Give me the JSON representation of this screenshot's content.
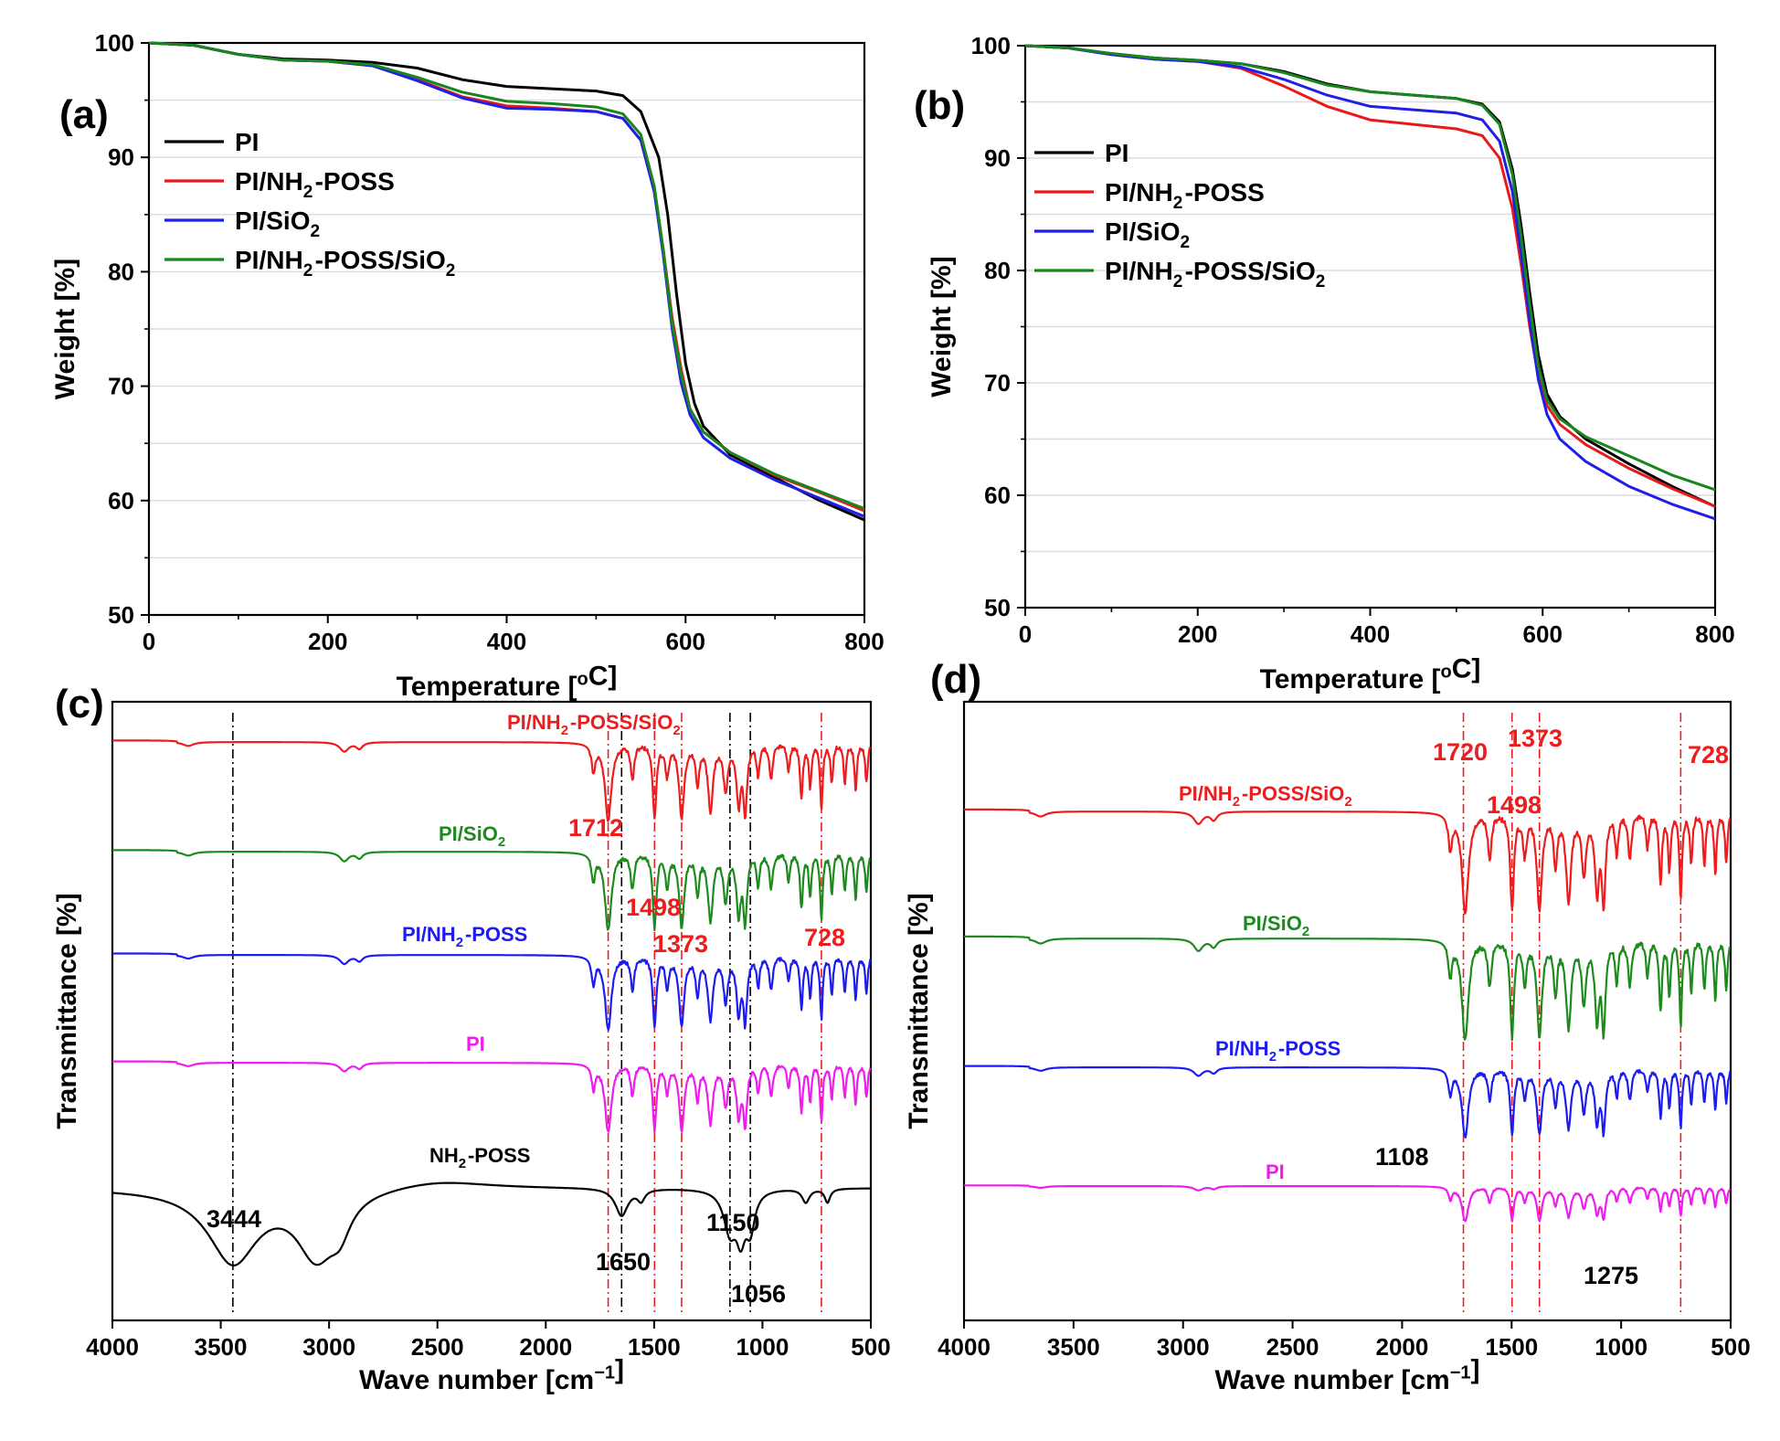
{
  "colors": {
    "PI_tga": "#000000",
    "NH2POSS_tga": "#e8191a",
    "SiO2_tga": "#1f1fe8",
    "both_tga": "#18851f",
    "ftir_both": "#ee1c1c",
    "ftir_sio2": "#1c8a1c",
    "ftir_nh2": "#1c1cf0",
    "ftir_pi": "#ee1cee",
    "ftir_poss": "#000000",
    "peak_red": "#ee1c1c",
    "peak_black": "#000000",
    "grid": "#dcdcdc"
  },
  "chart_data": [
    {
      "id": "a",
      "type": "line",
      "panel_label": "(a)",
      "xlabel": "Temperature [°C]",
      "ylabel": "Weight [%]",
      "xlim": [
        0,
        800
      ],
      "ylim": [
        50,
        100
      ],
      "xticks": [
        0,
        200,
        400,
        600,
        800
      ],
      "yticks": [
        50,
        60,
        70,
        80,
        90,
        100
      ],
      "grid": "horizontal",
      "legend_position": "upper-left",
      "series": [
        {
          "name": "PI",
          "color_key": "PI_tga",
          "points": [
            [
              0,
              100
            ],
            [
              50,
              99.8
            ],
            [
              100,
              99
            ],
            [
              150,
              98.6
            ],
            [
              200,
              98.5
            ],
            [
              250,
              98.3
            ],
            [
              300,
              97.8
            ],
            [
              350,
              96.8
            ],
            [
              400,
              96.2
            ],
            [
              450,
              96
            ],
            [
              500,
              95.8
            ],
            [
              530,
              95.4
            ],
            [
              550,
              94
            ],
            [
              570,
              90
            ],
            [
              580,
              85
            ],
            [
              590,
              78
            ],
            [
              600,
              72
            ],
            [
              610,
              68.5
            ],
            [
              620,
              66.5
            ],
            [
              650,
              64
            ],
            [
              700,
              62
            ],
            [
              750,
              60
            ],
            [
              800,
              58.3
            ]
          ]
        },
        {
          "name": "PI/NH2-POSS",
          "color_key": "NH2POSS_tga",
          "points": [
            [
              0,
              100
            ],
            [
              50,
              99.8
            ],
            [
              100,
              99
            ],
            [
              150,
              98.5
            ],
            [
              200,
              98.4
            ],
            [
              250,
              98
            ],
            [
              300,
              96.8
            ],
            [
              350,
              95.3
            ],
            [
              400,
              94.5
            ],
            [
              450,
              94.3
            ],
            [
              500,
              94
            ],
            [
              530,
              93.4
            ],
            [
              550,
              91.5
            ],
            [
              565,
              87
            ],
            [
              575,
              82
            ],
            [
              585,
              76
            ],
            [
              595,
              71.5
            ],
            [
              605,
              68
            ],
            [
              620,
              66
            ],
            [
              650,
              64.2
            ],
            [
              700,
              62.2
            ],
            [
              750,
              60.7
            ],
            [
              800,
              59.1
            ]
          ]
        },
        {
          "name": "PI/SiO2",
          "color_key": "SiO2_tga",
          "points": [
            [
              0,
              100
            ],
            [
              50,
              99.8
            ],
            [
              100,
              99
            ],
            [
              150,
              98.5
            ],
            [
              200,
              98.4
            ],
            [
              250,
              98
            ],
            [
              300,
              96.7
            ],
            [
              350,
              95.2
            ],
            [
              400,
              94.3
            ],
            [
              450,
              94.2
            ],
            [
              500,
              94
            ],
            [
              530,
              93.4
            ],
            [
              550,
              91.5
            ],
            [
              565,
              87
            ],
            [
              575,
              81.5
            ],
            [
              585,
              75
            ],
            [
              595,
              70.3
            ],
            [
              605,
              67.5
            ],
            [
              620,
              65.5
            ],
            [
              650,
              63.7
            ],
            [
              700,
              61.8
            ],
            [
              750,
              60.2
            ],
            [
              800,
              58.6
            ]
          ]
        },
        {
          "name": "PI/NH2-POSS/SiO2",
          "color_key": "both_tga",
          "points": [
            [
              0,
              100
            ],
            [
              50,
              99.8
            ],
            [
              100,
              99
            ],
            [
              150,
              98.5
            ],
            [
              200,
              98.4
            ],
            [
              250,
              98.1
            ],
            [
              300,
              97
            ],
            [
              350,
              95.7
            ],
            [
              400,
              94.9
            ],
            [
              450,
              94.7
            ],
            [
              500,
              94.4
            ],
            [
              530,
              93.8
            ],
            [
              550,
              92
            ],
            [
              565,
              87.5
            ],
            [
              575,
              82
            ],
            [
              585,
              75.5
            ],
            [
              595,
              71
            ],
            [
              605,
              68
            ],
            [
              620,
              66
            ],
            [
              650,
              64.2
            ],
            [
              700,
              62.3
            ],
            [
              750,
              60.8
            ],
            [
              800,
              59.3
            ]
          ]
        }
      ]
    },
    {
      "id": "b",
      "type": "line",
      "panel_label": "(b)",
      "xlabel": "Temperature [°C]",
      "ylabel": "Weight [%]",
      "xlim": [
        0,
        800
      ],
      "ylim": [
        50,
        100
      ],
      "xticks": [
        0,
        200,
        400,
        600,
        800
      ],
      "yticks": [
        50,
        60,
        70,
        80,
        90,
        100
      ],
      "grid": "horizontal",
      "legend_position": "upper-left",
      "series": [
        {
          "name": "PI",
          "color_key": "PI_tga",
          "points": [
            [
              0,
              100
            ],
            [
              50,
              99.8
            ],
            [
              100,
              99.3
            ],
            [
              150,
              98.9
            ],
            [
              200,
              98.7
            ],
            [
              250,
              98.4
            ],
            [
              300,
              97.7
            ],
            [
              350,
              96.6
            ],
            [
              400,
              95.9
            ],
            [
              450,
              95.6
            ],
            [
              500,
              95.3
            ],
            [
              530,
              94.8
            ],
            [
              550,
              93.2
            ],
            [
              565,
              89
            ],
            [
              575,
              84
            ],
            [
              585,
              78
            ],
            [
              595,
              72.5
            ],
            [
              605,
              69
            ],
            [
              620,
              67
            ],
            [
              650,
              65
            ],
            [
              700,
              62.8
            ],
            [
              750,
              60.8
            ],
            [
              800,
              59
            ]
          ]
        },
        {
          "name": "PI/NH2-POSS",
          "color_key": "NH2POSS_tga",
          "points": [
            [
              0,
              100
            ],
            [
              50,
              99.8
            ],
            [
              100,
              99.2
            ],
            [
              150,
              98.8
            ],
            [
              200,
              98.6
            ],
            [
              250,
              98
            ],
            [
              300,
              96.4
            ],
            [
              350,
              94.6
            ],
            [
              400,
              93.4
            ],
            [
              450,
              93
            ],
            [
              500,
              92.6
            ],
            [
              530,
              92
            ],
            [
              550,
              90
            ],
            [
              565,
              85.5
            ],
            [
              575,
              80.5
            ],
            [
              585,
              75
            ],
            [
              595,
              70.5
            ],
            [
              605,
              68
            ],
            [
              620,
              66.3
            ],
            [
              650,
              64.5
            ],
            [
              700,
              62.4
            ],
            [
              750,
              60.6
            ],
            [
              800,
              59
            ]
          ]
        },
        {
          "name": "PI/SiO2",
          "color_key": "SiO2_tga",
          "points": [
            [
              0,
              100
            ],
            [
              50,
              99.8
            ],
            [
              100,
              99.2
            ],
            [
              150,
              98.8
            ],
            [
              200,
              98.6
            ],
            [
              250,
              98.1
            ],
            [
              300,
              97
            ],
            [
              350,
              95.6
            ],
            [
              400,
              94.6
            ],
            [
              450,
              94.3
            ],
            [
              500,
              94
            ],
            [
              530,
              93.4
            ],
            [
              550,
              91.5
            ],
            [
              565,
              87
            ],
            [
              575,
              81.5
            ],
            [
              585,
              75.5
            ],
            [
              595,
              70.3
            ],
            [
              605,
              67.2
            ],
            [
              620,
              65
            ],
            [
              650,
              63
            ],
            [
              700,
              60.8
            ],
            [
              750,
              59.2
            ],
            [
              800,
              57.9
            ]
          ]
        },
        {
          "name": "PI/NH2-POSS/SiO2",
          "color_key": "both_tga",
          "points": [
            [
              0,
              100
            ],
            [
              50,
              99.8
            ],
            [
              100,
              99.3
            ],
            [
              150,
              98.9
            ],
            [
              200,
              98.7
            ],
            [
              250,
              98.4
            ],
            [
              300,
              97.6
            ],
            [
              350,
              96.5
            ],
            [
              400,
              95.9
            ],
            [
              450,
              95.6
            ],
            [
              500,
              95.3
            ],
            [
              530,
              94.7
            ],
            [
              550,
              93
            ],
            [
              565,
              88.5
            ],
            [
              575,
              83
            ],
            [
              585,
              77
            ],
            [
              595,
              71.5
            ],
            [
              605,
              68.5
            ],
            [
              620,
              66.8
            ],
            [
              650,
              65.2
            ],
            [
              700,
              63.5
            ],
            [
              750,
              61.8
            ],
            [
              800,
              60.5
            ]
          ]
        }
      ]
    },
    {
      "id": "c",
      "type": "line",
      "panel_label": "(c)",
      "xlabel": "Wave number [cm⁻¹]",
      "ylabel": "Transmittance [%]",
      "xlim": [
        4000,
        500
      ],
      "x_reversed": true,
      "xticks": [
        4000,
        3500,
        3000,
        2500,
        2000,
        1500,
        1000,
        500
      ],
      "y_ticks_shown": false,
      "series": [
        {
          "name": "PI/NH2-POSS/SiO2",
          "color_key": "ftir_both"
        },
        {
          "name": "PI/SiO2",
          "color_key": "ftir_sio2"
        },
        {
          "name": "PI/NH2-POSS",
          "color_key": "ftir_nh2"
        },
        {
          "name": "PI",
          "color_key": "ftir_pi"
        },
        {
          "name": "NH2-POSS",
          "color_key": "ftir_poss"
        }
      ],
      "reference_lines": [
        {
          "x": 3444,
          "color_key": "peak_black"
        },
        {
          "x": 1712,
          "color_key": "peak_red"
        },
        {
          "x": 1650,
          "color_key": "peak_black"
        },
        {
          "x": 1498,
          "color_key": "peak_red"
        },
        {
          "x": 1373,
          "color_key": "peak_red"
        },
        {
          "x": 1150,
          "color_key": "peak_black"
        },
        {
          "x": 1056,
          "color_key": "peak_black"
        },
        {
          "x": 728,
          "color_key": "peak_red"
        }
      ],
      "annotations": [
        {
          "text": "1712",
          "color_key": "peak_red"
        },
        {
          "text": "1498",
          "color_key": "peak_red"
        },
        {
          "text": "1373",
          "color_key": "peak_red"
        },
        {
          "text": "728",
          "color_key": "peak_red"
        },
        {
          "text": "3444",
          "color_key": "peak_black"
        },
        {
          "text": "1650",
          "color_key": "peak_black"
        },
        {
          "text": "1150",
          "color_key": "peak_black"
        },
        {
          "text": "1056",
          "color_key": "peak_black"
        }
      ]
    },
    {
      "id": "d",
      "type": "line",
      "panel_label": "(d)",
      "xlabel": "Wave number [cm⁻¹]",
      "ylabel": "Transmittance [%]",
      "xlim": [
        4000,
        500
      ],
      "x_reversed": true,
      "xticks": [
        4000,
        3500,
        3000,
        2500,
        2000,
        1500,
        1000,
        500
      ],
      "y_ticks_shown": false,
      "series": [
        {
          "name": "PI/NH2-POSS/SiO2",
          "color_key": "ftir_both"
        },
        {
          "name": "PI/SiO2",
          "color_key": "ftir_sio2"
        },
        {
          "name": "PI/NH2-POSS",
          "color_key": "ftir_nh2"
        },
        {
          "name": "PI",
          "color_key": "ftir_pi"
        }
      ],
      "reference_lines": [
        {
          "x": 1720,
          "color_key": "peak_red"
        },
        {
          "x": 1498,
          "color_key": "peak_red"
        },
        {
          "x": 1373,
          "color_key": "peak_red"
        },
        {
          "x": 728,
          "color_key": "peak_red"
        }
      ],
      "annotations": [
        {
          "text": "1720",
          "color_key": "peak_red"
        },
        {
          "text": "1373",
          "color_key": "peak_red"
        },
        {
          "text": "728",
          "color_key": "peak_red"
        },
        {
          "text": "1498",
          "color_key": "peak_red"
        },
        {
          "text": "1108",
          "color_key": "peak_black"
        },
        {
          "text": "1275",
          "color_key": "peak_black"
        }
      ]
    }
  ]
}
